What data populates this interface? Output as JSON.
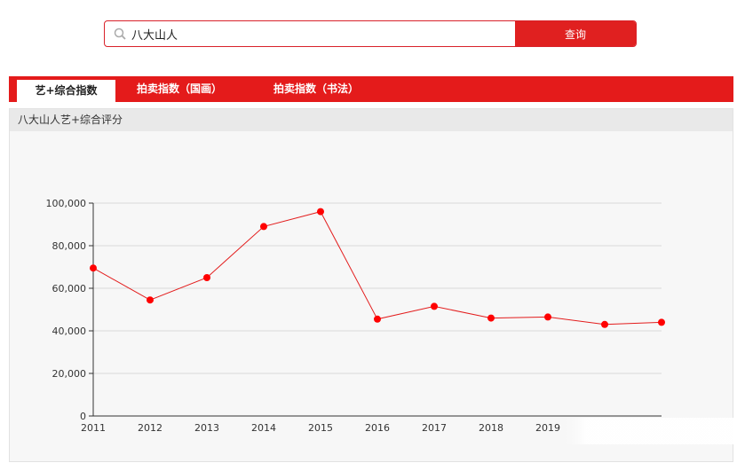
{
  "search": {
    "value": "八大山人",
    "button_label": "查询"
  },
  "tabs": [
    {
      "label": "艺+综合指数",
      "active": true
    },
    {
      "label": "拍卖指数（国画）",
      "active": false
    },
    {
      "label": "拍卖指数（书法）",
      "active": false
    }
  ],
  "panel": {
    "title": "八大山人艺+综合评分"
  },
  "colors": {
    "accent": "#e41b1b",
    "line": "#e31c1c",
    "point": "#ff0000"
  },
  "chart_data": {
    "type": "line",
    "title": "",
    "xlabel": "",
    "ylabel": "",
    "x": [
      "2011",
      "2012",
      "2013",
      "2014",
      "2015",
      "2016",
      "2017",
      "2018",
      "2019"
    ],
    "series": [
      {
        "values": [
          69500,
          54500,
          65000,
          89000,
          96000,
          45500,
          51500,
          46000,
          46500
        ]
      }
    ],
    "extra_points": [
      43000,
      44000
    ],
    "ylim": [
      0,
      100000
    ],
    "yticks": [
      "0",
      "20,000",
      "40,000",
      "60,000",
      "80,000",
      "100,000"
    ],
    "grid": true
  }
}
